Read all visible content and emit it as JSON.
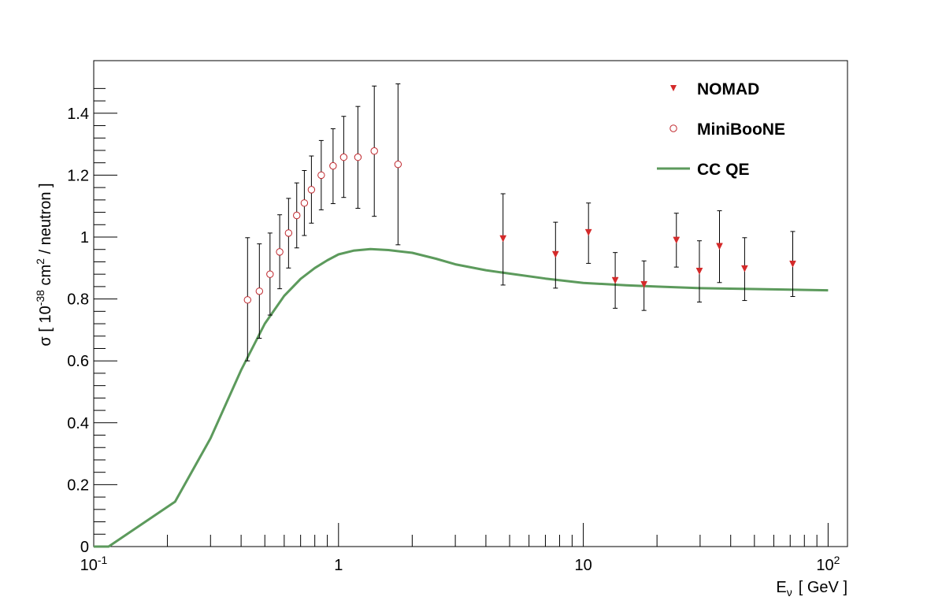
{
  "chart_data": {
    "type": "scatter",
    "title": "",
    "xlabel": "E",
    "xlabel_sub": "ν",
    "xlabel_unit": "[ GeV ]",
    "ylabel_pre": "σ  [ 10",
    "ylabel_sup": "-38",
    "ylabel_mid": " cm",
    "ylabel_sup2": "2",
    "ylabel_post": " / neutron ]",
    "x_scale": "log",
    "xlim": [
      0.1,
      120
    ],
    "ylim": [
      0,
      1.57
    ],
    "x_ticks": [
      {
        "value": 0.1,
        "base": "10",
        "exp": "-1"
      },
      {
        "value": 1,
        "base": "1",
        "exp": ""
      },
      {
        "value": 10,
        "base": "10",
        "exp": ""
      },
      {
        "value": 100,
        "base": "10",
        "exp": "2"
      }
    ],
    "y_ticks": [
      {
        "value": 0,
        "label": "0"
      },
      {
        "value": 0.2,
        "label": "0.2"
      },
      {
        "value": 0.4,
        "label": "0.4"
      },
      {
        "value": 0.6,
        "label": "0.6"
      },
      {
        "value": 0.8,
        "label": "0.8"
      },
      {
        "value": 1.0,
        "label": "1"
      },
      {
        "value": 1.2,
        "label": "1.2"
      },
      {
        "value": 1.4,
        "label": "1.4"
      }
    ],
    "grid": false,
    "legend_position": "top-right",
    "series": [
      {
        "name": "NOMAD",
        "kind": "points",
        "marker": "triangle-down",
        "color": "#d42a2a",
        "points": [
          {
            "x": 4.7,
            "y": 0.995,
            "lo": 0.845,
            "hi": 1.14
          },
          {
            "x": 7.7,
            "y": 0.944,
            "lo": 0.835,
            "hi": 1.048
          },
          {
            "x": 10.5,
            "y": 1.015,
            "lo": 0.915,
            "hi": 1.11
          },
          {
            "x": 13.5,
            "y": 0.86,
            "lo": 0.77,
            "hi": 0.95
          },
          {
            "x": 17.7,
            "y": 0.847,
            "lo": 0.763,
            "hi": 0.923
          },
          {
            "x": 24.0,
            "y": 0.99,
            "lo": 0.903,
            "hi": 1.077
          },
          {
            "x": 29.8,
            "y": 0.89,
            "lo": 0.79,
            "hi": 0.988
          },
          {
            "x": 36.0,
            "y": 0.97,
            "lo": 0.853,
            "hi": 1.085
          },
          {
            "x": 45.6,
            "y": 0.898,
            "lo": 0.795,
            "hi": 0.998
          },
          {
            "x": 71.7,
            "y": 0.913,
            "lo": 0.808,
            "hi": 1.018
          }
        ]
      },
      {
        "name": "MiniBooNE",
        "kind": "points",
        "marker": "open-circle",
        "color": "#c0272d",
        "points": [
          {
            "x": 0.425,
            "y": 0.797,
            "lo": 0.6,
            "hi": 0.998
          },
          {
            "x": 0.475,
            "y": 0.825,
            "lo": 0.673,
            "hi": 0.978
          },
          {
            "x": 0.525,
            "y": 0.88,
            "lo": 0.748,
            "hi": 1.013
          },
          {
            "x": 0.575,
            "y": 0.952,
            "lo": 0.833,
            "hi": 1.072
          },
          {
            "x": 0.625,
            "y": 1.013,
            "lo": 0.9,
            "hi": 1.125
          },
          {
            "x": 0.675,
            "y": 1.07,
            "lo": 0.965,
            "hi": 1.175
          },
          {
            "x": 0.725,
            "y": 1.11,
            "lo": 1.005,
            "hi": 1.215
          },
          {
            "x": 0.775,
            "y": 1.153,
            "lo": 1.045,
            "hi": 1.262
          },
          {
            "x": 0.85,
            "y": 1.2,
            "lo": 1.088,
            "hi": 1.312
          },
          {
            "x": 0.95,
            "y": 1.23,
            "lo": 1.108,
            "hi": 1.35
          },
          {
            "x": 1.05,
            "y": 1.258,
            "lo": 1.128,
            "hi": 1.39
          },
          {
            "x": 1.2,
            "y": 1.258,
            "lo": 1.093,
            "hi": 1.422
          },
          {
            "x": 1.4,
            "y": 1.278,
            "lo": 1.067,
            "hi": 1.488
          },
          {
            "x": 1.75,
            "y": 1.235,
            "lo": 0.975,
            "hi": 1.495
          }
        ]
      },
      {
        "name": "CC QE",
        "kind": "line",
        "color": "#5c9a5c",
        "points": [
          {
            "x": 0.1,
            "y": 0.0
          },
          {
            "x": 0.115,
            "y": 0.0
          },
          {
            "x": 0.215,
            "y": 0.145
          },
          {
            "x": 0.3,
            "y": 0.35
          },
          {
            "x": 0.4,
            "y": 0.57
          },
          {
            "x": 0.5,
            "y": 0.72
          },
          {
            "x": 0.6,
            "y": 0.81
          },
          {
            "x": 0.7,
            "y": 0.865
          },
          {
            "x": 0.8,
            "y": 0.9
          },
          {
            "x": 0.9,
            "y": 0.925
          },
          {
            "x": 1.0,
            "y": 0.944
          },
          {
            "x": 1.15,
            "y": 0.956
          },
          {
            "x": 1.35,
            "y": 0.961
          },
          {
            "x": 1.6,
            "y": 0.958
          },
          {
            "x": 2.0,
            "y": 0.949
          },
          {
            "x": 2.5,
            "y": 0.93
          },
          {
            "x": 3.0,
            "y": 0.912
          },
          {
            "x": 4.0,
            "y": 0.893
          },
          {
            "x": 5.0,
            "y": 0.882
          },
          {
            "x": 7.0,
            "y": 0.866
          },
          {
            "x": 10.0,
            "y": 0.852
          },
          {
            "x": 15.0,
            "y": 0.844
          },
          {
            "x": 20.0,
            "y": 0.84
          },
          {
            "x": 30.0,
            "y": 0.835
          },
          {
            "x": 50.0,
            "y": 0.832
          },
          {
            "x": 100.0,
            "y": 0.828
          }
        ]
      }
    ]
  }
}
